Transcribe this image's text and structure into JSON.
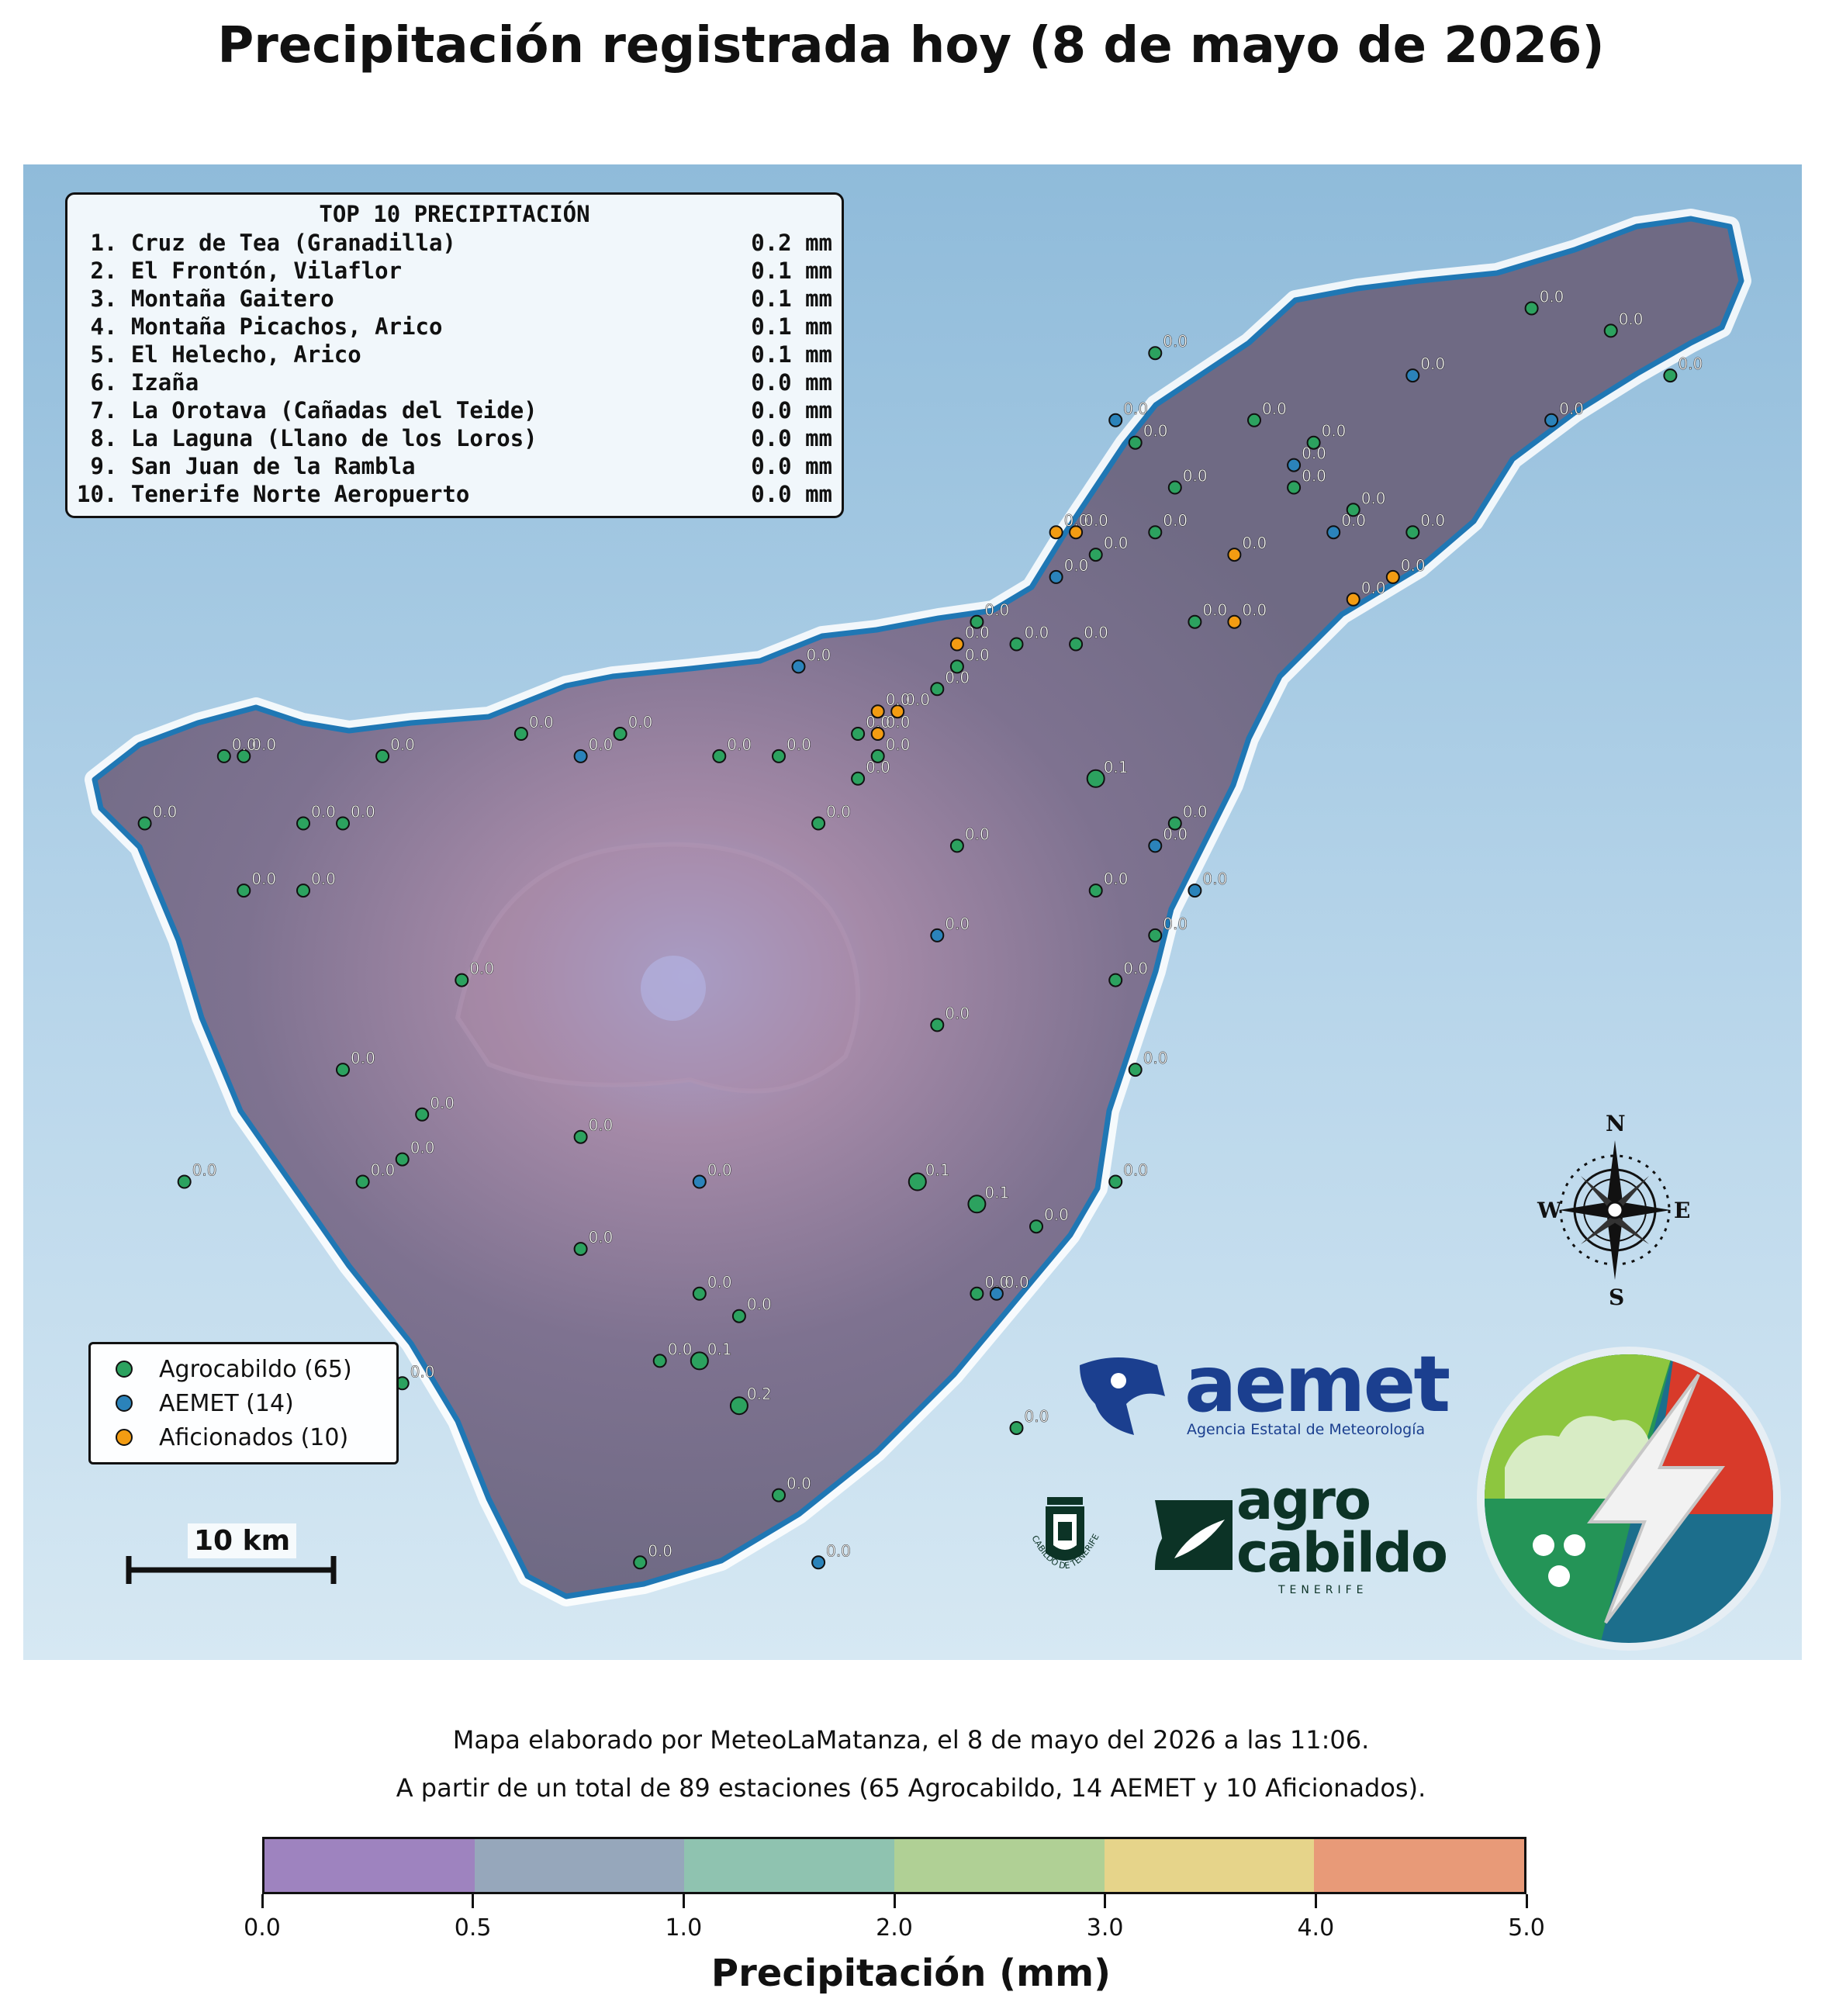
{
  "title": "Precipitación registrada hoy (8 de mayo de 2026)",
  "top10": {
    "heading": "TOP 10 PRECIPITACIÓN",
    "rows": [
      {
        "rank": " 1.",
        "name": "Cruz de Tea (Granadilla)",
        "value": "0.2 mm"
      },
      {
        "rank": " 2.",
        "name": "El Frontón, Vilaflor",
        "value": "0.1 mm"
      },
      {
        "rank": " 3.",
        "name": "Montaña Gaitero",
        "value": "0.1 mm"
      },
      {
        "rank": " 4.",
        "name": "Montaña Picachos, Arico",
        "value": "0.1 mm"
      },
      {
        "rank": " 5.",
        "name": "El Helecho, Arico",
        "value": "0.1 mm"
      },
      {
        "rank": " 6.",
        "name": "Izaña",
        "value": "0.0 mm"
      },
      {
        "rank": " 7.",
        "name": "La Orotava (Cañadas del Teide)",
        "value": "0.0 mm"
      },
      {
        "rank": " 8.",
        "name": "La Laguna (Llano de los Loros)",
        "value": "0.0 mm"
      },
      {
        "rank": " 9.",
        "name": "San Juan de la Rambla",
        "value": "0.0 mm"
      },
      {
        "rank": "10.",
        "name": "Tenerife Norte Aeropuerto",
        "value": "0.0 mm"
      }
    ]
  },
  "legend": {
    "items": [
      {
        "label": "Agrocabildo (65)",
        "color": "#2ca25f"
      },
      {
        "label": "AEMET (14)",
        "color": "#2b83ba"
      },
      {
        "label": "Aficionados (10)",
        "color": "#f39c12"
      }
    ]
  },
  "scale": {
    "label": "10 km"
  },
  "compass": {
    "n": "N",
    "s": "S",
    "e": "E",
    "w": "W"
  },
  "logos": {
    "aemet_word": "aemet",
    "aemet_sub": "Agencia Estatal de Meteorología",
    "cabildo_text": "CABILDO DE TENERIFE",
    "agro_line1": "agro",
    "agro_line2": "cabildo",
    "agro_sub": "TENERIFE"
  },
  "colors": {
    "coast": "#1f77b4",
    "island": "#7e7290",
    "agro": "#2ca25f",
    "aemet": "#2b83ba",
    "aficionados": "#f39c12"
  },
  "stations": [
    {
      "net": "agro",
      "lon": -16.85,
      "lat": 28.36,
      "v": "0.0"
    },
    {
      "net": "agro",
      "lon": -16.86,
      "lat": 28.36,
      "v": "0.0"
    },
    {
      "net": "agro",
      "lon": -16.78,
      "lat": 28.36,
      "v": "0.0"
    },
    {
      "net": "agro",
      "lon": -16.71,
      "lat": 28.37,
      "v": "0.0"
    },
    {
      "net": "agro",
      "lon": -16.66,
      "lat": 28.37,
      "v": "0.0"
    },
    {
      "net": "agro",
      "lon": -16.9,
      "lat": 28.33,
      "v": "0.0"
    },
    {
      "net": "agro",
      "lon": -16.82,
      "lat": 28.33,
      "v": "0.0"
    },
    {
      "net": "agro",
      "lon": -16.8,
      "lat": 28.33,
      "v": "0.0"
    },
    {
      "net": "agro",
      "lon": -16.85,
      "lat": 28.3,
      "v": "0.0"
    },
    {
      "net": "agro",
      "lon": -16.82,
      "lat": 28.3,
      "v": "0.0"
    },
    {
      "net": "agro",
      "lon": -16.74,
      "lat": 28.26,
      "v": "0.0"
    },
    {
      "net": "agro",
      "lon": -16.8,
      "lat": 28.22,
      "v": "0.0"
    },
    {
      "net": "agro",
      "lon": -16.88,
      "lat": 28.17,
      "v": "0.0"
    },
    {
      "net": "agro",
      "lon": -16.76,
      "lat": 28.2,
      "v": "0.0"
    },
    {
      "net": "agro",
      "lon": -16.68,
      "lat": 28.19,
      "v": "0.0"
    },
    {
      "net": "agro",
      "lon": -16.79,
      "lat": 28.17,
      "v": "0.0"
    },
    {
      "net": "agro",
      "lon": -16.77,
      "lat": 28.18,
      "v": "0.0"
    },
    {
      "net": "agro",
      "lon": -16.77,
      "lat": 28.08,
      "v": "0.0"
    },
    {
      "net": "agro",
      "lon": -16.68,
      "lat": 28.14,
      "v": "0.0"
    },
    {
      "net": "agro",
      "lon": -16.62,
      "lat": 28.12,
      "v": "0.0"
    },
    {
      "net": "agro",
      "lon": -16.6,
      "lat": 28.11,
      "v": "0.0"
    },
    {
      "net": "agro",
      "lon": -16.64,
      "lat": 28.09,
      "v": "0.0"
    },
    {
      "net": "agro",
      "lon": -16.62,
      "lat": 28.09,
      "v": "0.1"
    },
    {
      "net": "agro",
      "lon": -16.6,
      "lat": 28.07,
      "v": "0.2"
    },
    {
      "net": "agro",
      "lon": -16.58,
      "lat": 28.03,
      "v": "0.0"
    },
    {
      "net": "agro",
      "lon": -16.65,
      "lat": 28.0,
      "v": "0.0"
    },
    {
      "net": "agro",
      "lon": -16.51,
      "lat": 28.17,
      "v": "0.1"
    },
    {
      "net": "agro",
      "lon": -16.48,
      "lat": 28.16,
      "v": "0.1"
    },
    {
      "net": "agro",
      "lon": -16.45,
      "lat": 28.15,
      "v": "0.0"
    },
    {
      "net": "agro",
      "lon": -16.48,
      "lat": 28.12,
      "v": "0.0"
    },
    {
      "net": "agro",
      "lon": -16.46,
      "lat": 28.06,
      "v": "0.0"
    },
    {
      "net": "agro",
      "lon": -16.41,
      "lat": 28.17,
      "v": "0.0"
    },
    {
      "net": "agro",
      "lon": -16.4,
      "lat": 28.22,
      "v": "0.0"
    },
    {
      "net": "agro",
      "lon": -16.41,
      "lat": 28.26,
      "v": "0.0"
    },
    {
      "net": "agro",
      "lon": -16.39,
      "lat": 28.28,
      "v": "0.0"
    },
    {
      "net": "agro",
      "lon": -16.42,
      "lat": 28.3,
      "v": "0.0"
    },
    {
      "net": "agro",
      "lon": -16.38,
      "lat": 28.33,
      "v": "0.0"
    },
    {
      "net": "agro",
      "lon": -16.49,
      "lat": 28.32,
      "v": "0.0"
    },
    {
      "net": "agro",
      "lon": -16.5,
      "lat": 28.24,
      "v": "0.0"
    },
    {
      "net": "agro",
      "lon": -16.42,
      "lat": 28.35,
      "v": "0.1"
    },
    {
      "net": "agro",
      "lon": -16.56,
      "lat": 28.33,
      "v": "0.0"
    },
    {
      "net": "agro",
      "lon": -16.58,
      "lat": 28.36,
      "v": "0.0"
    },
    {
      "net": "agro",
      "lon": -16.61,
      "lat": 28.36,
      "v": "0.0"
    },
    {
      "net": "agro",
      "lon": -16.54,
      "lat": 28.35,
      "v": "0.0"
    },
    {
      "net": "agro",
      "lon": -16.54,
      "lat": 28.37,
      "v": "0.0"
    },
    {
      "net": "agro",
      "lon": -16.53,
      "lat": 28.36,
      "v": "0.0"
    },
    {
      "net": "agro",
      "lon": -16.5,
      "lat": 28.39,
      "v": "0.0"
    },
    {
      "net": "agro",
      "lon": -16.49,
      "lat": 28.4,
      "v": "0.0"
    },
    {
      "net": "agro",
      "lon": -16.48,
      "lat": 28.42,
      "v": "0.0"
    },
    {
      "net": "agro",
      "lon": -16.46,
      "lat": 28.41,
      "v": "0.0"
    },
    {
      "net": "agro",
      "lon": -16.43,
      "lat": 28.41,
      "v": "0.0"
    },
    {
      "net": "agro",
      "lon": -16.42,
      "lat": 28.45,
      "v": "0.0"
    },
    {
      "net": "agro",
      "lon": -16.39,
      "lat": 28.46,
      "v": "0.0"
    },
    {
      "net": "agro",
      "lon": -16.38,
      "lat": 28.48,
      "v": "0.0"
    },
    {
      "net": "agro",
      "lon": -16.4,
      "lat": 28.5,
      "v": "0.0"
    },
    {
      "net": "agro",
      "lon": -16.34,
      "lat": 28.51,
      "v": "0.0"
    },
    {
      "net": "agro",
      "lon": -16.32,
      "lat": 28.48,
      "v": "0.0"
    },
    {
      "net": "agro",
      "lon": -16.29,
      "lat": 28.47,
      "v": "0.0"
    },
    {
      "net": "agro",
      "lon": -16.26,
      "lat": 28.46,
      "v": "0.0"
    },
    {
      "net": "agro",
      "lon": -16.31,
      "lat": 28.5,
      "v": "0.0"
    },
    {
      "net": "agro",
      "lon": -16.2,
      "lat": 28.56,
      "v": "0.0"
    },
    {
      "net": "agro",
      "lon": -16.16,
      "lat": 28.55,
      "v": "0.0"
    },
    {
      "net": "agro",
      "lon": -16.13,
      "lat": 28.53,
      "v": "0.0"
    },
    {
      "net": "agro",
      "lon": -16.37,
      "lat": 28.42,
      "v": "0.0"
    },
    {
      "net": "agro",
      "lon": -16.39,
      "lat": 28.54,
      "v": "0.0"
    },
    {
      "net": "aemet",
      "lon": -16.68,
      "lat": 28.36,
      "v": "0.0"
    },
    {
      "net": "aemet",
      "lon": -16.57,
      "lat": 28.4,
      "v": "0.0"
    },
    {
      "net": "aemet",
      "lon": -16.44,
      "lat": 28.44,
      "v": "0.0"
    },
    {
      "net": "aemet",
      "lon": -16.41,
      "lat": 28.51,
      "v": "0.0"
    },
    {
      "net": "aemet",
      "lon": -16.26,
      "lat": 28.53,
      "v": "0.0"
    },
    {
      "net": "aemet",
      "lon": -16.32,
      "lat": 28.49,
      "v": "0.0"
    },
    {
      "net": "aemet",
      "lon": -16.19,
      "lat": 28.51,
      "v": "0.0"
    },
    {
      "net": "aemet",
      "lon": -16.3,
      "lat": 28.46,
      "v": "0.0"
    },
    {
      "net": "aemet",
      "lon": -16.39,
      "lat": 28.32,
      "v": "0.0"
    },
    {
      "net": "aemet",
      "lon": -16.37,
      "lat": 28.3,
      "v": "0.0"
    },
    {
      "net": "aemet",
      "lon": -16.5,
      "lat": 28.28,
      "v": "0.0"
    },
    {
      "net": "aemet",
      "lon": -16.62,
      "lat": 28.17,
      "v": "0.0"
    },
    {
      "net": "aemet",
      "lon": -16.47,
      "lat": 28.12,
      "v": "0.0"
    },
    {
      "net": "aemet",
      "lon": -16.56,
      "lat": 28.0,
      "v": "0.0"
    },
    {
      "net": "afic",
      "lon": -16.44,
      "lat": 28.46,
      "v": "0.0"
    },
    {
      "net": "afic",
      "lon": -16.43,
      "lat": 28.46,
      "v": "0.0"
    },
    {
      "net": "afic",
      "lon": -16.49,
      "lat": 28.41,
      "v": "0.0"
    },
    {
      "net": "afic",
      "lon": -16.52,
      "lat": 28.38,
      "v": "0.0"
    },
    {
      "net": "afic",
      "lon": -16.53,
      "lat": 28.37,
      "v": "0.0"
    },
    {
      "net": "afic",
      "lon": -16.53,
      "lat": 28.38,
      "v": "0.0"
    },
    {
      "net": "afic",
      "lon": -16.35,
      "lat": 28.45,
      "v": "0.0"
    },
    {
      "net": "afic",
      "lon": -16.35,
      "lat": 28.42,
      "v": "0.0"
    },
    {
      "net": "afic",
      "lon": -16.29,
      "lat": 28.43,
      "v": "0.0"
    },
    {
      "net": "afic",
      "lon": -16.27,
      "lat": 28.44,
      "v": "0.0"
    }
  ],
  "footer": {
    "line1": "Mapa elaborado por MeteoLaMatanza, el 8 de mayo del 2026 a las 11:06.",
    "line2": "A partir de un total de 89 estaciones (65 Agrocabildo, 14 AEMET y 10 Aficionados)."
  },
  "colorbar": {
    "title": "Precipitación (mm)",
    "ticks": [
      "0.0",
      "0.5",
      "1.0",
      "2.0",
      "3.0",
      "4.0",
      "5.0"
    ],
    "colors": [
      "#9e83bf",
      "#96a7bb",
      "#8fc3b0",
      "#b0d095",
      "#e6d48a",
      "#e89a78"
    ]
  }
}
